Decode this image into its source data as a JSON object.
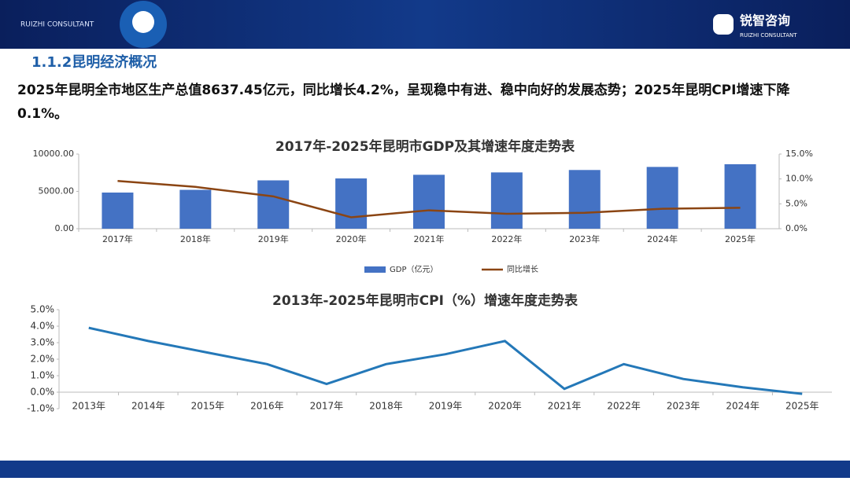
{
  "header": {
    "brand_left": "RUIZHI CONSULTANT",
    "brand_right_cn": "锐智咨询",
    "brand_right_en": "RUIZHI CONSULTANT"
  },
  "section_title": "1.1.2昆明经济概况",
  "summary": "2025年昆明全市地区生产总值8637.45亿元，同比增长4.2%，呈现稳中有进、稳中向好的发展态势；2025年昆明CPI增速下降0.1%。",
  "chart_data": [
    {
      "type": "bar",
      "title": "2017年-2025年昆明市GDP及其增速年度走势表",
      "categories": [
        "2017年",
        "2018年",
        "2019年",
        "2020年",
        "2021年",
        "2022年",
        "2023年",
        "2024年",
        "2025年"
      ],
      "series": [
        {
          "name": "GDP（亿元）",
          "type": "bar",
          "color": "#4472c4",
          "values": [
            4842,
            5206,
            6476,
            6734,
            7223,
            7541,
            7864,
            8275,
            8637.45
          ]
        },
        {
          "name": "同比增长",
          "type": "line",
          "axis": "y2",
          "color": "#8b4513",
          "values": [
            9.6,
            8.4,
            6.5,
            2.3,
            3.7,
            3.0,
            3.2,
            4.0,
            4.2
          ]
        }
      ],
      "ylim": [
        0,
        10000
      ],
      "yticks": [
        {
          "value": 0,
          "label": "0.00"
        },
        {
          "value": 5000,
          "label": "5000.00"
        },
        {
          "value": 10000,
          "label": "10000.00"
        }
      ],
      "y2lim": [
        0,
        15
      ],
      "y2ticks": [
        {
          "value": 0,
          "label": "0.0%"
        },
        {
          "value": 5,
          "label": "5.0%"
        },
        {
          "value": 10,
          "label": "10.0%"
        },
        {
          "value": 15,
          "label": "15.0%"
        }
      ],
      "legend": "bottom"
    },
    {
      "type": "line",
      "title": "2013年-2025年昆明市CPI（%）增速年度走势表",
      "categories": [
        "2013年",
        "2014年",
        "2015年",
        "2016年",
        "2017年",
        "2018年",
        "2019年",
        "2020年",
        "2021年",
        "2022年",
        "2023年",
        "2024年",
        "2025年"
      ],
      "series": [
        {
          "name": "CPI",
          "color": "#2478b8",
          "values": [
            3.9,
            3.1,
            2.4,
            1.7,
            0.5,
            1.7,
            2.3,
            3.1,
            0.2,
            1.7,
            0.8,
            0.3,
            -0.1
          ]
        }
      ],
      "ylim": [
        -1,
        5
      ],
      "yticks": [
        {
          "value": -1,
          "label": "-1.0%"
        },
        {
          "value": 0,
          "label": "0.0%"
        },
        {
          "value": 1,
          "label": "1.0%"
        },
        {
          "value": 2,
          "label": "2.0%"
        },
        {
          "value": 3,
          "label": "3.0%"
        },
        {
          "value": 4,
          "label": "4.0%"
        },
        {
          "value": 5,
          "label": "5.0%"
        }
      ]
    }
  ]
}
